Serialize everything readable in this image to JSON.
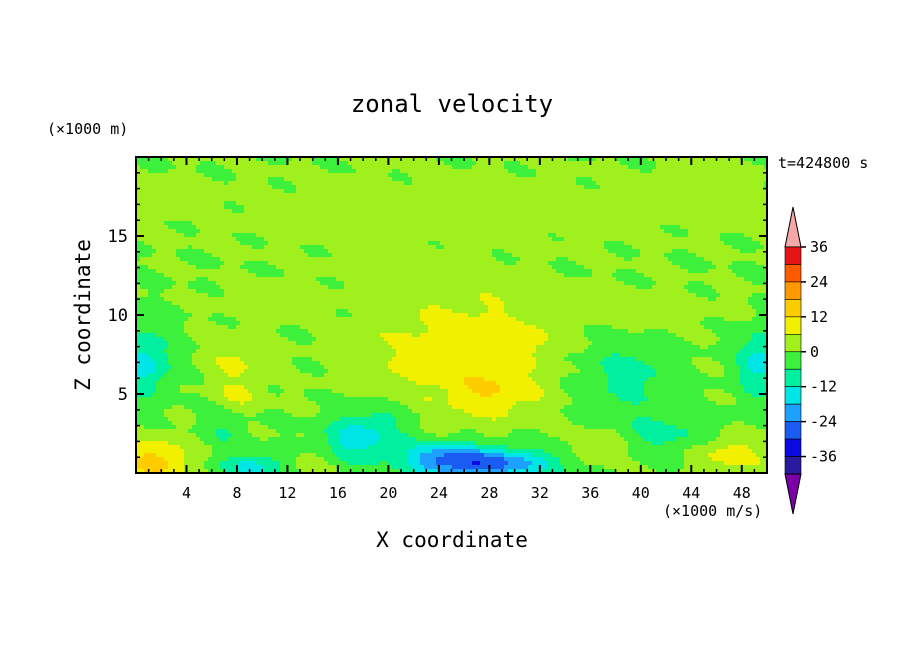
{
  "chart_data": {
    "type": "heatmap",
    "title": "zonal velocity",
    "xlabel": "X coordinate",
    "ylabel": "Z coordinate",
    "x_unit": "(×1000 m/s)",
    "y_unit": "(×1000 m)",
    "time_label": "t=424800 s",
    "xlim": [
      0,
      50
    ],
    "ylim": [
      0,
      20
    ],
    "x_ticks": [
      4,
      8,
      12,
      16,
      20,
      24,
      28,
      32,
      36,
      40,
      44,
      48
    ],
    "y_ticks": [
      5,
      10,
      15
    ],
    "colorbar": {
      "levels": [
        -42,
        -36,
        -30,
        -24,
        -18,
        -12,
        -6,
        0,
        6,
        12,
        18,
        24,
        30,
        36,
        42
      ],
      "tick_labels": [
        36,
        24,
        12,
        0,
        -12,
        -24,
        -36
      ],
      "colors": [
        "#7b00a8",
        "#2a1aa0",
        "#0a0ae0",
        "#1a5cf2",
        "#1ea0ff",
        "#00e6e6",
        "#00f0a0",
        "#3cf03c",
        "#a0f01e",
        "#f0f000",
        "#ffcc00",
        "#ff9900",
        "#ff5a00",
        "#e61414",
        "#f4a8a8"
      ],
      "extend": "both"
    },
    "features": [
      {
        "x": 2.5,
        "z": 17.5,
        "rx": 3,
        "rz": 1,
        "v": 3
      },
      {
        "x": 25,
        "z": 16.5,
        "rx": 20,
        "rz": 2.5,
        "v": 3
      },
      {
        "x": 45,
        "z": 17.8,
        "rx": 5,
        "rz": 1.5,
        "v": 3
      },
      {
        "x": 40,
        "z": 10.5,
        "rx": 7,
        "rz": 1.2,
        "v": 3
      },
      {
        "x": 10,
        "z": 11,
        "rx": 4,
        "rz": 1.2,
        "v": 3
      },
      {
        "x": 22,
        "z": 11.5,
        "rx": 5.5,
        "rz": 1.5,
        "v": 2
      },
      {
        "x": 28.5,
        "z": 10,
        "rx": 3.5,
        "rz": 1.8,
        "v": 2
      },
      {
        "x": 20,
        "z": 13,
        "rx": 5,
        "rz": 0.8,
        "v": 2
      },
      {
        "x": 25,
        "z": 7.5,
        "rx": 7,
        "rz": 3.5,
        "v": 9
      },
      {
        "x": 28.5,
        "z": 5,
        "rx": 3.5,
        "rz": 1.5,
        "v": 8
      },
      {
        "x": 8,
        "z": 7.3,
        "rx": 2.3,
        "rz": 1.5,
        "v": 7
      },
      {
        "x": 8,
        "z": 4.8,
        "rx": 2.0,
        "rz": 1.2,
        "v": 7
      },
      {
        "x": 37,
        "z": 1.8,
        "rx": 2.5,
        "rz": 1.2,
        "v": 6
      },
      {
        "x": 31,
        "z": 8.5,
        "rx": 2,
        "rz": 1,
        "v": 6
      },
      {
        "x": 0.6,
        "z": 7,
        "rx": 2.2,
        "rz": 2,
        "v": -15
      },
      {
        "x": 49.5,
        "z": 7,
        "rx": 1.8,
        "rz": 2,
        "v": -15
      },
      {
        "x": 39,
        "z": 6.3,
        "rx": 3.5,
        "rz": 2,
        "v": -9
      },
      {
        "x": 42,
        "z": 2.5,
        "rx": 5,
        "rz": 1.5,
        "v": -8
      },
      {
        "x": 19,
        "z": 2.8,
        "rx": 3,
        "rz": 1.8,
        "v": -9
      },
      {
        "x": 7,
        "z": 3,
        "rx": 2,
        "rz": 1.5,
        "v": -6
      },
      {
        "x": 28,
        "z": 0.6,
        "rx": 5,
        "rz": 1,
        "v": -26
      },
      {
        "x": 24,
        "z": 1.0,
        "rx": 3,
        "rz": 1,
        "v": -14
      },
      {
        "x": 17,
        "z": 2.0,
        "rx": 2.5,
        "rz": 1.3,
        "v": -10
      },
      {
        "x": 1.5,
        "z": 0.7,
        "rx": 3,
        "rz": 1.4,
        "v": 14
      },
      {
        "x": 9.5,
        "z": 0.4,
        "rx": 3,
        "rz": 0.8,
        "v": -14
      },
      {
        "x": 47,
        "z": 1.3,
        "rx": 3,
        "rz": 1.3,
        "v": 10
      },
      {
        "x": 13.5,
        "z": 0.6,
        "rx": 1.8,
        "rz": 0.8,
        "v": 6
      }
    ]
  }
}
